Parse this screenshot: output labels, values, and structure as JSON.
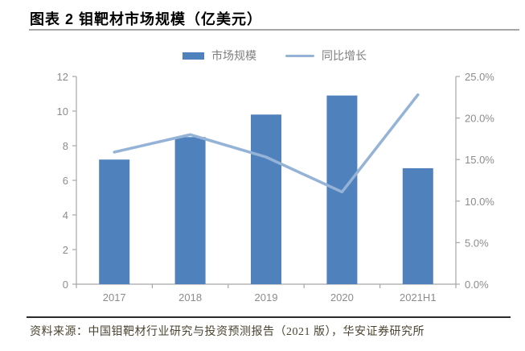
{
  "title": "图表 2 钼靶材市场规模（亿美元）",
  "source": "资料来源：中国钼靶材行业研究与投资预测报告（2021 版），华安证券研究所",
  "legend": {
    "bar_label": "市场规模",
    "line_label": "同比增长"
  },
  "colors": {
    "bar": "#4F81BD",
    "line": "#95B3D7",
    "axis": "#A6A6A6",
    "axis_label": "#8C8C8C",
    "title_rule": "#A6A6A6",
    "bottom_rule": "#2B2B2B",
    "source_text": "#4A4430"
  },
  "chart_data": {
    "type": "bar",
    "subtype": "bar-line-combo",
    "title": "钼靶材市场规模（亿美元）",
    "categories": [
      "2017",
      "2018",
      "2019",
      "2020",
      "2021H1"
    ],
    "series": [
      {
        "name": "市场规模",
        "type": "bar",
        "axis": "left",
        "unit": "亿美元",
        "values": [
          7.2,
          8.5,
          9.8,
          10.9,
          6.7
        ]
      },
      {
        "name": "同比增长",
        "type": "line",
        "axis": "right",
        "unit": "%",
        "values": [
          15.9,
          18.0,
          15.3,
          11.1,
          22.8
        ]
      }
    ],
    "left_axis": {
      "min": 0,
      "max": 12,
      "tick_labels": [
        "0",
        "2",
        "4",
        "6",
        "8",
        "10",
        "12"
      ]
    },
    "right_axis": {
      "min": 0,
      "max": 25,
      "tick_labels": [
        "0.0%",
        "5.0%",
        "10.0%",
        "15.0%",
        "20.0%",
        "25.0%"
      ]
    },
    "grid": false,
    "legend_position": "top"
  }
}
